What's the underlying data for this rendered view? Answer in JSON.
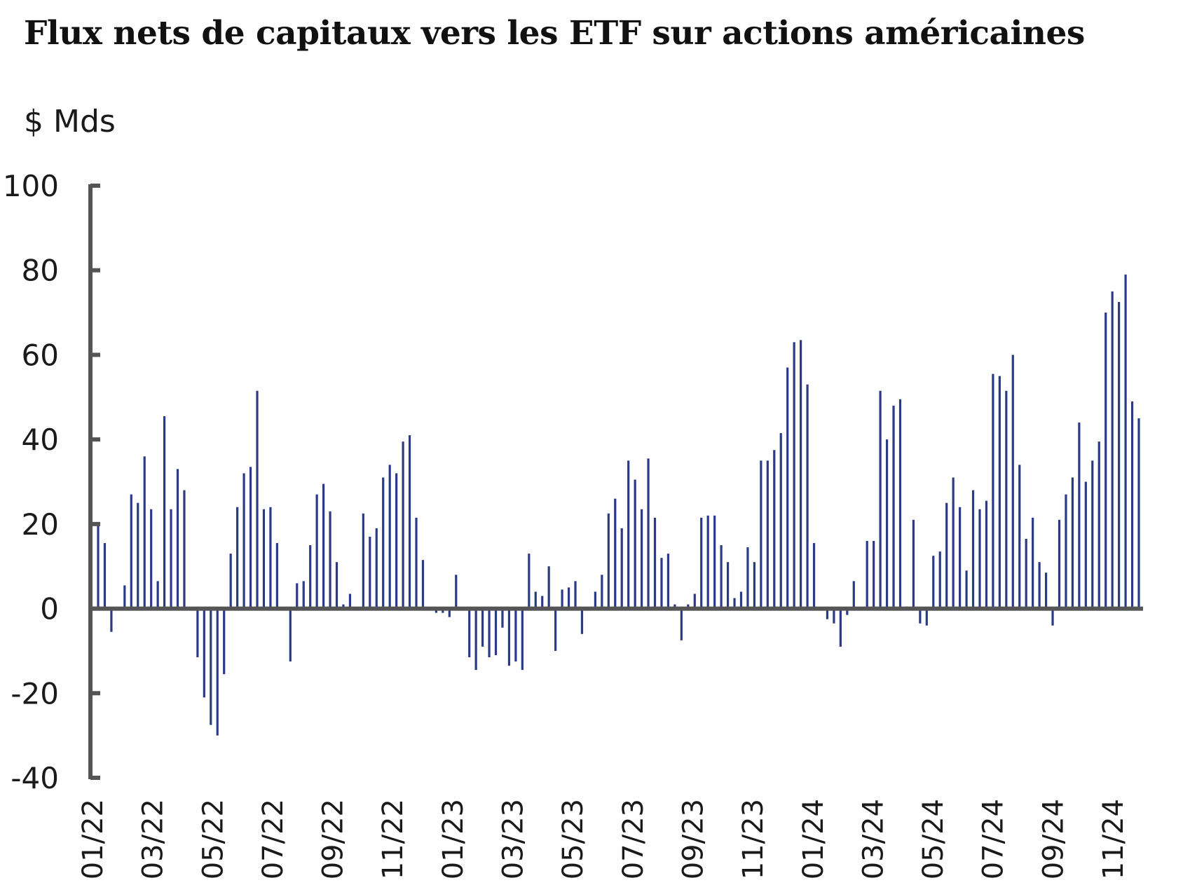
{
  "chart_data": {
    "type": "bar",
    "title": "Flux nets de capitaux vers les ETF sur actions américaines",
    "ylabel": "$ Mds",
    "xlabel": "",
    "ylim": [
      -40,
      100
    ],
    "yticks": [
      100,
      80,
      60,
      40,
      20,
      0,
      -20,
      -40
    ],
    "ytick_labels": [
      "100",
      "80",
      "60",
      "40",
      "20",
      "0",
      "-20",
      "-40"
    ],
    "xtick_labels": [
      "01/22",
      "03/22",
      "05/22",
      "07/22",
      "09/22",
      "11/22",
      "01/23",
      "03/23",
      "05/23",
      "07/23",
      "09/23",
      "11/23",
      "01/24",
      "03/24",
      "05/24",
      "07/24",
      "09/24",
      "11/24"
    ],
    "grid": false,
    "bar_color": "#2b3a86",
    "axis_color": "#555555",
    "series": [
      {
        "values": [
          20,
          15.5,
          -5.5,
          0,
          5.5,
          27,
          25,
          36,
          23.5,
          6.5,
          45.5,
          23.5,
          33,
          28,
          0,
          -11.5,
          -21,
          -27.5,
          -30,
          -15.5,
          13,
          24,
          32,
          33.5,
          51.5,
          23.5,
          24,
          15.5,
          0,
          -12.5,
          6,
          6.5,
          15,
          27,
          29.5,
          23,
          11,
          1,
          3.5,
          0,
          22.5,
          17,
          19,
          31,
          34,
          32,
          39.5,
          41,
          21.5,
          11.5,
          0,
          -1,
          -1,
          -2,
          8,
          0,
          -11.5,
          -14.5,
          -9,
          -11.5,
          -11,
          -4.5,
          -13.5,
          -12.5,
          -14.5,
          13,
          4,
          3,
          10,
          -10,
          4.5,
          5,
          6.5,
          -6,
          0,
          4,
          8,
          22.5,
          26,
          19,
          35,
          30.5,
          23.5,
          35.5,
          21.5,
          12,
          13,
          1,
          -7.5,
          1,
          3.5,
          21.5,
          22,
          22,
          15,
          11,
          2.5,
          4,
          14.5,
          11,
          35,
          35,
          37.5,
          41.5,
          57,
          63,
          63.5,
          53,
          15.5,
          0,
          -2.5,
          -3.5,
          -9,
          -1.5,
          6.5,
          0,
          16,
          16,
          51.5,
          40,
          48,
          49.5,
          0.5,
          21,
          -3.5,
          -4,
          12.5,
          13.5,
          25,
          31,
          24,
          9,
          28,
          23.5,
          25.5,
          55.5,
          55,
          51.5,
          60,
          34,
          16.5,
          21.5,
          11,
          8.5,
          -4,
          21,
          27,
          31,
          44,
          30,
          35,
          39.5,
          70,
          75,
          72.5,
          79,
          49,
          45
        ]
      }
    ]
  }
}
